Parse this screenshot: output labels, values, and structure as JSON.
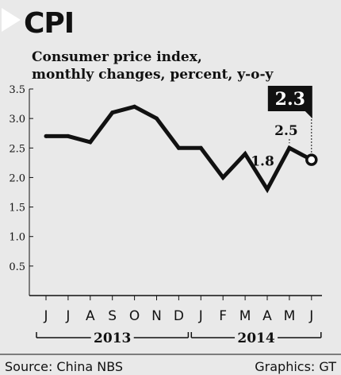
{
  "header": {
    "title": "CPI"
  },
  "subtitle": {
    "line1": "Consumer price index,",
    "line2": "monthly changes, percent, y-o-y"
  },
  "footer": {
    "source": "Source: China NBS",
    "credit": "Graphics: GT"
  },
  "colors": {
    "background": "#e9e9e9",
    "line": "#111111",
    "text": "#111111",
    "callout_fill": "#111111",
    "callout_text": "#ffffff",
    "marker_fill": "#ffffff"
  },
  "chart_data": {
    "type": "line",
    "title": "CPI",
    "subtitle": "Consumer price index, monthly changes, percent, y-o-y",
    "categories": [
      "J",
      "J",
      "A",
      "S",
      "O",
      "N",
      "D",
      "J",
      "F",
      "M",
      "A",
      "M",
      "J"
    ],
    "years": [
      {
        "label": "2013",
        "from": 0,
        "to": 6
      },
      {
        "label": "2014",
        "from": 7,
        "to": 12
      }
    ],
    "series": [
      {
        "values": [
          2.7,
          2.7,
          2.6,
          3.1,
          3.2,
          3.0,
          2.5,
          2.5,
          2.0,
          2.4,
          1.8,
          2.5,
          2.3
        ]
      }
    ],
    "ylim": [
      0,
      3.5
    ],
    "yticks": [
      "0.5",
      "1.0",
      "1.5",
      "2.0",
      "2.5",
      "3.0",
      "3.5"
    ],
    "ytick_values": [
      0.5,
      1.0,
      1.5,
      2.0,
      2.5,
      3.0,
      3.5
    ],
    "grid": false,
    "annotations": [
      {
        "index": 10,
        "text": "1.8",
        "style": "plain"
      },
      {
        "index": 11,
        "text": "2.5",
        "style": "plain"
      },
      {
        "index": 12,
        "text": "2.3",
        "style": "callout"
      }
    ],
    "source": "Source: China NBS",
    "credit": "Graphics: GT"
  }
}
